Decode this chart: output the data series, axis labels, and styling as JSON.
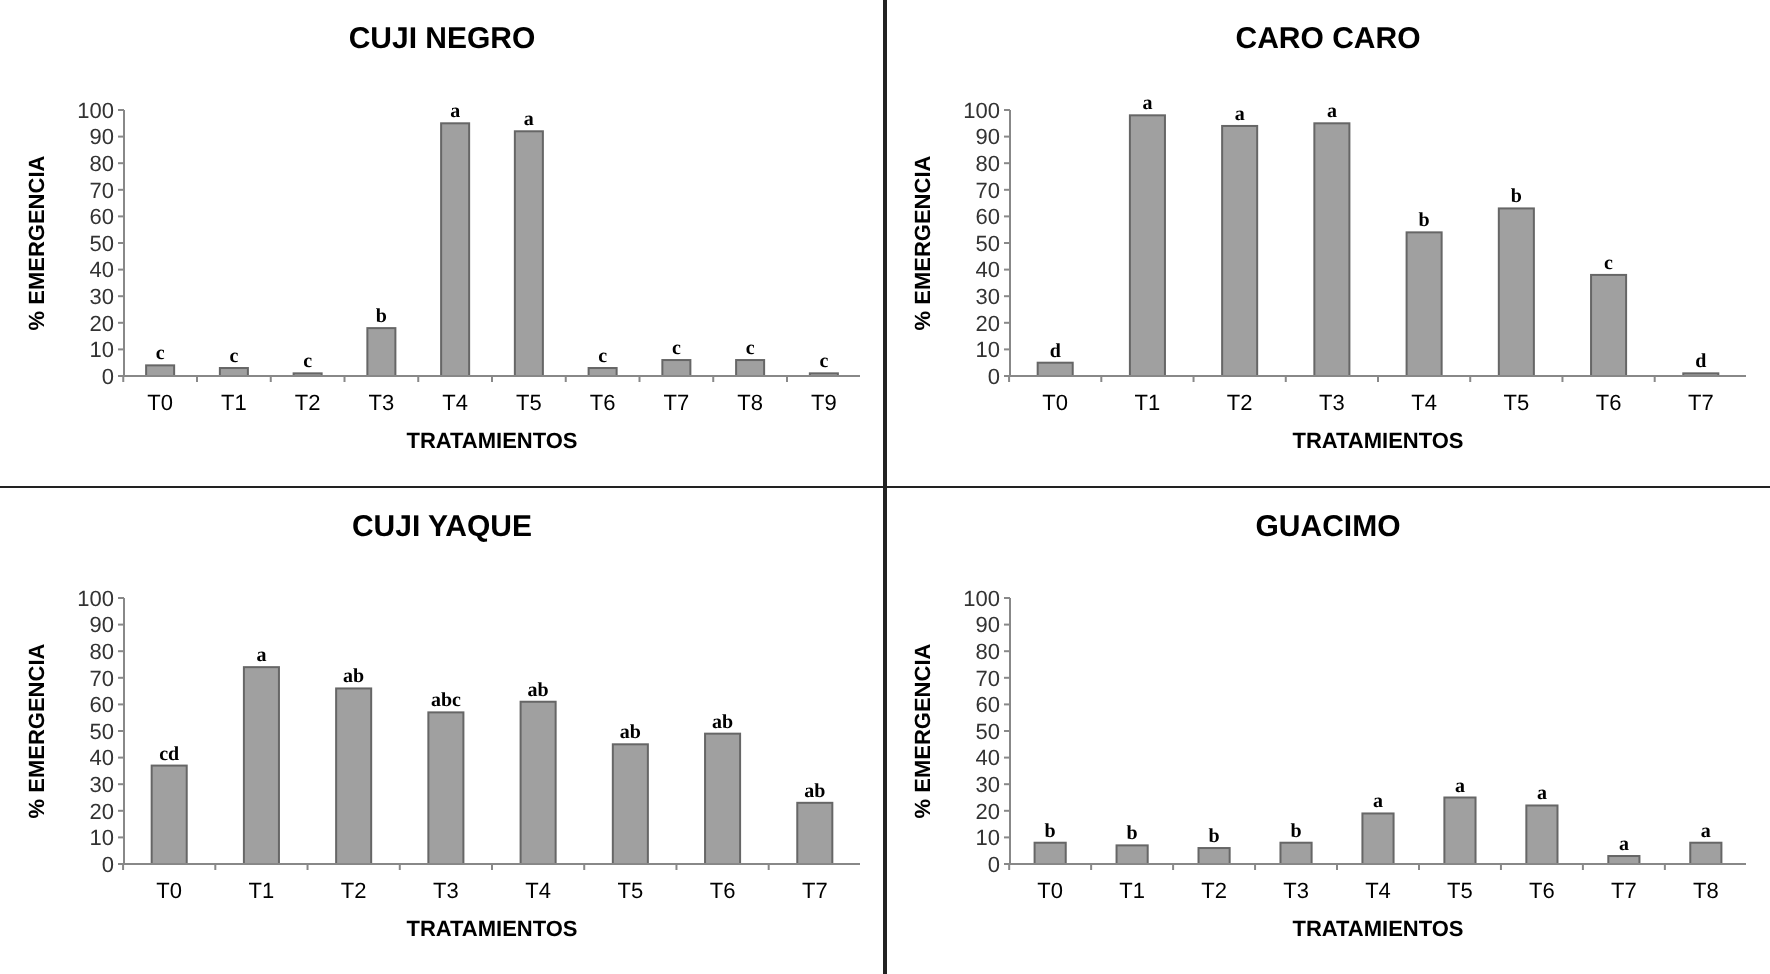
{
  "chart_data": [
    {
      "type": "bar",
      "title": "CUJI NEGRO",
      "xlabel": "TRATAMIENTOS",
      "ylabel": "% EMERGENCIA",
      "categories": [
        "T0",
        "T1",
        "T2",
        "T3",
        "T4",
        "T5",
        "T6",
        "T7",
        "T8",
        "T9"
      ],
      "values": [
        4,
        3,
        1,
        18,
        95,
        92,
        3,
        6,
        6,
        1
      ],
      "color": "#a0a0a0",
      "ylim": [
        0,
        100
      ],
      "yticks": [
        0,
        10,
        20,
        30,
        40,
        50,
        60,
        70,
        80,
        90,
        100
      ],
      "annotations": [
        {
          "text": "c",
          "x": "T0",
          "y": 4
        },
        {
          "text": "c",
          "x": "T1",
          "y": 3
        },
        {
          "text": "c",
          "x": "T2",
          "y": 1
        },
        {
          "text": "b",
          "x": "T3",
          "y": 18
        },
        {
          "text": "a",
          "x": "T4",
          "y": 95
        },
        {
          "text": "a",
          "x": "T5",
          "y": 92
        },
        {
          "text": "c",
          "x": "T6",
          "y": 3
        },
        {
          "text": "c",
          "x": "T7",
          "y": 6
        },
        {
          "text": "c",
          "x": "T8",
          "y": 6
        },
        {
          "text": "c",
          "x": "T9",
          "y": 1
        }
      ]
    },
    {
      "type": "bar",
      "title": "CARO CARO",
      "xlabel": "TRATAMIENTOS",
      "ylabel": "% EMERGENCIA",
      "categories": [
        "T0",
        "T1",
        "T2",
        "T3",
        "T4",
        "T5",
        "T6",
        "T7"
      ],
      "values": [
        5,
        98,
        94,
        95,
        54,
        63,
        38,
        1
      ],
      "color": "#a0a0a0",
      "ylim": [
        0,
        100
      ],
      "yticks": [
        0,
        10,
        20,
        30,
        40,
        50,
        60,
        70,
        80,
        90,
        100
      ],
      "annotations": [
        {
          "text": "d",
          "x": "T0",
          "y": 5
        },
        {
          "text": "a",
          "x": "T1",
          "y": 98
        },
        {
          "text": "a",
          "x": "T2",
          "y": 94
        },
        {
          "text": "a",
          "x": "T3",
          "y": 95
        },
        {
          "text": "b",
          "x": "T4",
          "y": 54
        },
        {
          "text": "b",
          "x": "T5",
          "y": 63
        },
        {
          "text": "c",
          "x": "T6",
          "y": 38
        },
        {
          "text": "d",
          "x": "T7",
          "y": 1
        }
      ]
    },
    {
      "type": "bar",
      "title": "CUJI YAQUE",
      "xlabel": "TRATAMIENTOS",
      "ylabel": "% EMERGENCIA",
      "categories": [
        "T0",
        "T1",
        "T2",
        "T3",
        "T4",
        "T5",
        "T6",
        "T7"
      ],
      "values": [
        37,
        74,
        66,
        57,
        61,
        45,
        49,
        23
      ],
      "color": "#a0a0a0",
      "ylim": [
        0,
        100
      ],
      "yticks": [
        0,
        10,
        20,
        30,
        40,
        50,
        60,
        70,
        80,
        90,
        100
      ],
      "annotations": [
        {
          "text": "cd",
          "x": "T0",
          "y": 37
        },
        {
          "text": "a",
          "x": "T1",
          "y": 74
        },
        {
          "text": "ab",
          "x": "T2",
          "y": 66
        },
        {
          "text": "abc",
          "x": "T3",
          "y": 57
        },
        {
          "text": "ab",
          "x": "T4",
          "y": 61
        },
        {
          "text": "ab",
          "x": "T5",
          "y": 45
        },
        {
          "text": "ab",
          "x": "T6",
          "y": 49
        },
        {
          "text": "ab",
          "x": "T7",
          "y": 23
        }
      ]
    },
    {
      "type": "bar",
      "title": "GUACIMO",
      "xlabel": "TRATAMIENTOS",
      "ylabel": "% EMERGENCIA",
      "categories": [
        "T0",
        "T1",
        "T2",
        "T3",
        "T4",
        "T5",
        "T6",
        "T7",
        "T8"
      ],
      "values": [
        8,
        7,
        6,
        8,
        19,
        25,
        22,
        3,
        8
      ],
      "color": "#a0a0a0",
      "ylim": [
        0,
        100
      ],
      "yticks": [
        0,
        10,
        20,
        30,
        40,
        50,
        60,
        70,
        80,
        90,
        100
      ],
      "annotations": [
        {
          "text": "b",
          "x": "T0",
          "y": 8
        },
        {
          "text": "b",
          "x": "T1",
          "y": 7
        },
        {
          "text": "b",
          "x": "T2",
          "y": 6
        },
        {
          "text": "b",
          "x": "T3",
          "y": 8
        },
        {
          "text": "a",
          "x": "T4",
          "y": 19
        },
        {
          "text": "a",
          "x": "T5",
          "y": 25
        },
        {
          "text": "a",
          "x": "T6",
          "y": 22
        },
        {
          "text": "a",
          "x": "T7",
          "y": 3
        },
        {
          "text": "a",
          "x": "T8",
          "y": 8
        }
      ]
    }
  ]
}
